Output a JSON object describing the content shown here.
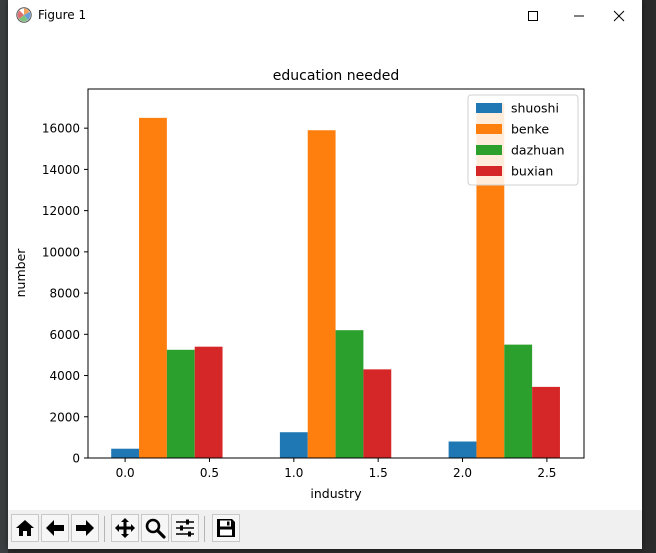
{
  "window": {
    "title": "Figure 1",
    "icons": {
      "app": "matplotlib-icon",
      "minimize": "minimize-icon",
      "maximize": "maximize-icon",
      "close": "close-icon"
    }
  },
  "toolbar": {
    "tools": [
      {
        "name": "home-icon"
      },
      {
        "name": "back-arrow-icon"
      },
      {
        "name": "forward-arrow-icon"
      },
      {
        "name": "pan-icon"
      },
      {
        "name": "zoom-icon"
      },
      {
        "name": "subplots-config-icon"
      },
      {
        "name": "save-icon"
      }
    ]
  },
  "chart_data": {
    "type": "bar",
    "title": "education needed",
    "xlabel": "industry",
    "ylabel": "number",
    "xlim": [
      -0.22,
      2.72
    ],
    "ylim": [
      0,
      17900
    ],
    "xticks": [
      0.0,
      0.5,
      1.0,
      1.5,
      2.0,
      2.5
    ],
    "xtick_labels": [
      "0.0",
      "0.5",
      "1.0",
      "1.5",
      "2.0",
      "2.5"
    ],
    "yticks": [
      0,
      2000,
      4000,
      6000,
      8000,
      10000,
      12000,
      14000,
      16000
    ],
    "ytick_labels": [
      "0",
      "2000",
      "4000",
      "6000",
      "8000",
      "10000",
      "12000",
      "14000",
      "16000"
    ],
    "bar_width": 0.165,
    "legend_position": "upper right",
    "grid": false,
    "series": [
      {
        "name": "shuoshi",
        "color": "#1f77b4",
        "x": [
          0.0,
          1.0,
          2.0
        ],
        "values": [
          450,
          1250,
          800
        ]
      },
      {
        "name": "benke",
        "color": "#ff7f0e",
        "x": [
          0.165,
          1.165,
          2.165
        ],
        "values": [
          16500,
          15900,
          17200
        ]
      },
      {
        "name": "dazhuan",
        "color": "#2ca02c",
        "x": [
          0.33,
          1.33,
          2.33
        ],
        "values": [
          5250,
          6200,
          5500
        ]
      },
      {
        "name": "buxian",
        "color": "#d62728",
        "x": [
          0.495,
          1.495,
          2.495
        ],
        "values": [
          5400,
          4300,
          3450
        ]
      }
    ]
  }
}
